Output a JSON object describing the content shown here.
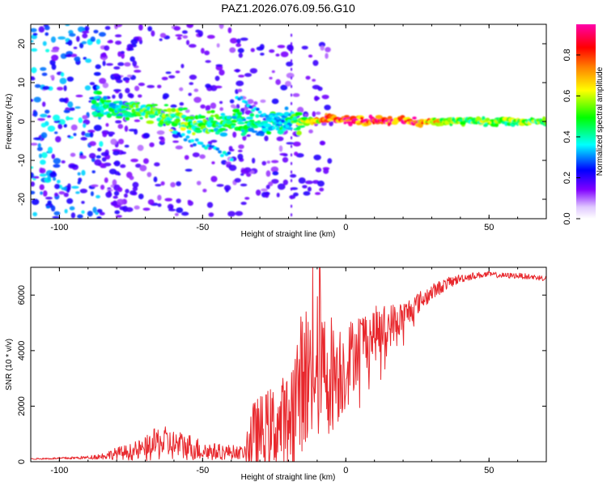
{
  "title": "PAZ1.2026.076.09.56.G10",
  "chart_data": [
    {
      "type": "heatmap",
      "xlabel": "Height of straight line (km)",
      "ylabel": "Frequency (Hz)",
      "xlim": [
        -110,
        70
      ],
      "ylim": [
        -25,
        25
      ],
      "xticks": [
        "-100",
        "-50",
        "0",
        "50"
      ],
      "yticks": [
        "20",
        "10",
        "0",
        "-10",
        "-20"
      ],
      "colorbar": {
        "label": "Normalized spectral amplitude",
        "range": [
          0.0,
          0.95
        ],
        "ticks": [
          "0.0",
          "0.2",
          "0.4",
          "0.6",
          "0.8"
        ],
        "colormap": [
          "#ffffff",
          "#8000ff",
          "#0000ff",
          "#00ffff",
          "#00ff00",
          "#ffff00",
          "#ff8000",
          "#ff0000",
          "#ff00aa"
        ]
      },
      "ridge": {
        "x": [
          -88,
          -80,
          -70,
          -60,
          -50,
          -40,
          -30,
          -25,
          -20,
          -15,
          -10,
          -5,
          0,
          10,
          20,
          30,
          40,
          50,
          60,
          70
        ],
        "freq": [
          5,
          4,
          2,
          1,
          -1,
          0,
          -1,
          0,
          0,
          0,
          0,
          1,
          0,
          0,
          0,
          0,
          0,
          0,
          0,
          0
        ],
        "amplitude": [
          0.3,
          0.35,
          0.4,
          0.45,
          0.4,
          0.35,
          0.3,
          0.35,
          0.3,
          0.5,
          0.65,
          0.8,
          0.9,
          0.85,
          0.9,
          0.6,
          0.45,
          0.45,
          0.45,
          0.45
        ]
      }
    },
    {
      "type": "line",
      "xlabel": "Height of straight line (km)",
      "ylabel": "SNR (10 * v/v)",
      "xlim": [
        -110,
        70
      ],
      "ylim": [
        0,
        7000
      ],
      "xticks": [
        "-100",
        "-50",
        "0",
        "50"
      ],
      "yticks": [
        "0",
        "2000",
        "4000",
        "6000"
      ],
      "series": [
        {
          "name": "SNR",
          "color": "#e8282d",
          "x": [
            -110,
            -100,
            -90,
            -85,
            -80,
            -75,
            -70,
            -65,
            -60,
            -55,
            -50,
            -45,
            -40,
            -35,
            -34,
            -30,
            -25,
            -20,
            -17,
            -15,
            -12,
            -10,
            -8,
            -5,
            0,
            5,
            10,
            15,
            20,
            25,
            30,
            35,
            40,
            45,
            50,
            55,
            60,
            65,
            70
          ],
          "y": [
            100,
            120,
            150,
            200,
            300,
            350,
            450,
            700,
            600,
            550,
            400,
            350,
            350,
            320,
            800,
            1000,
            1200,
            1500,
            2500,
            3000,
            3200,
            3500,
            3200,
            3200,
            3400,
            4300,
            4600,
            4900,
            5200,
            5700,
            6100,
            6400,
            6600,
            6700,
            6750,
            6700,
            6700,
            6650,
            6600
          ],
          "envelope": [
            20,
            40,
            60,
            120,
            220,
            300,
            450,
            650,
            550,
            500,
            380,
            300,
            260,
            220,
            1200,
            1400,
            1600,
            1800,
            2400,
            2600,
            2800,
            2800,
            2400,
            2200,
            1600,
            1200,
            1000,
            800,
            600,
            400,
            300,
            220,
            160,
            120,
            100,
            100,
            100,
            100,
            100
          ]
        }
      ]
    }
  ]
}
